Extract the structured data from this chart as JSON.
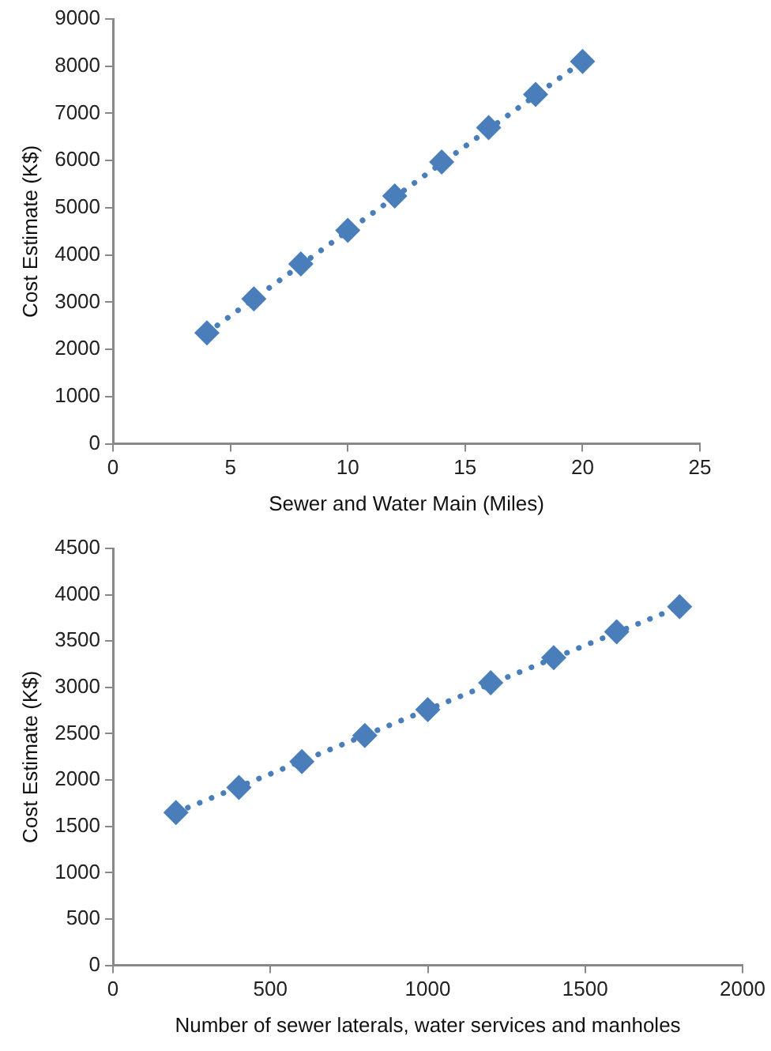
{
  "chart_data": [
    {
      "type": "scatter",
      "xlabel": "Sewer and Water Main (Miles)",
      "ylabel": "Cost Estimate (K$)",
      "xlim": [
        0,
        25
      ],
      "xticks": [
        0,
        5,
        10,
        15,
        20,
        25
      ],
      "ylim": [
        0,
        9000
      ],
      "yticks": [
        0,
        1000,
        2000,
        3000,
        4000,
        5000,
        6000,
        7000,
        8000,
        9000
      ],
      "grid": false,
      "marker": "diamond",
      "series": [
        {
          "color": "#4a7ebb",
          "x": [
            4,
            6,
            8,
            10,
            12,
            14,
            16,
            18,
            20
          ],
          "values": [
            2350,
            3070,
            3810,
            4520,
            5250,
            5970,
            6700,
            7400,
            8100
          ]
        },
        {
          "type": "line",
          "color": "#4a7ebb",
          "line_style": "dotted",
          "marker": "none",
          "x": [
            4,
            20
          ],
          "values": [
            2350,
            8100
          ]
        }
      ]
    },
    {
      "type": "scatter",
      "xlabel": "Number of sewer laterals, water services and manholes",
      "ylabel": "Cost Estimate (K$)",
      "xlim": [
        0,
        2000
      ],
      "xticks": [
        0,
        500,
        1000,
        1500,
        2000
      ],
      "ylim": [
        0,
        4500
      ],
      "yticks": [
        0,
        500,
        1000,
        1500,
        2000,
        2500,
        3000,
        3500,
        4000,
        4500
      ],
      "grid": false,
      "marker": "diamond",
      "series": [
        {
          "color": "#4a7ebb",
          "x": [
            200,
            400,
            600,
            800,
            1000,
            1200,
            1400,
            1600,
            1800
          ],
          "values": [
            1650,
            1920,
            2200,
            2480,
            2760,
            3050,
            3320,
            3600,
            3870
          ]
        },
        {
          "type": "line",
          "color": "#4a7ebb",
          "line_style": "dotted",
          "marker": "none",
          "x": [
            200,
            1800
          ],
          "values": [
            1650,
            3870
          ]
        }
      ]
    }
  ]
}
